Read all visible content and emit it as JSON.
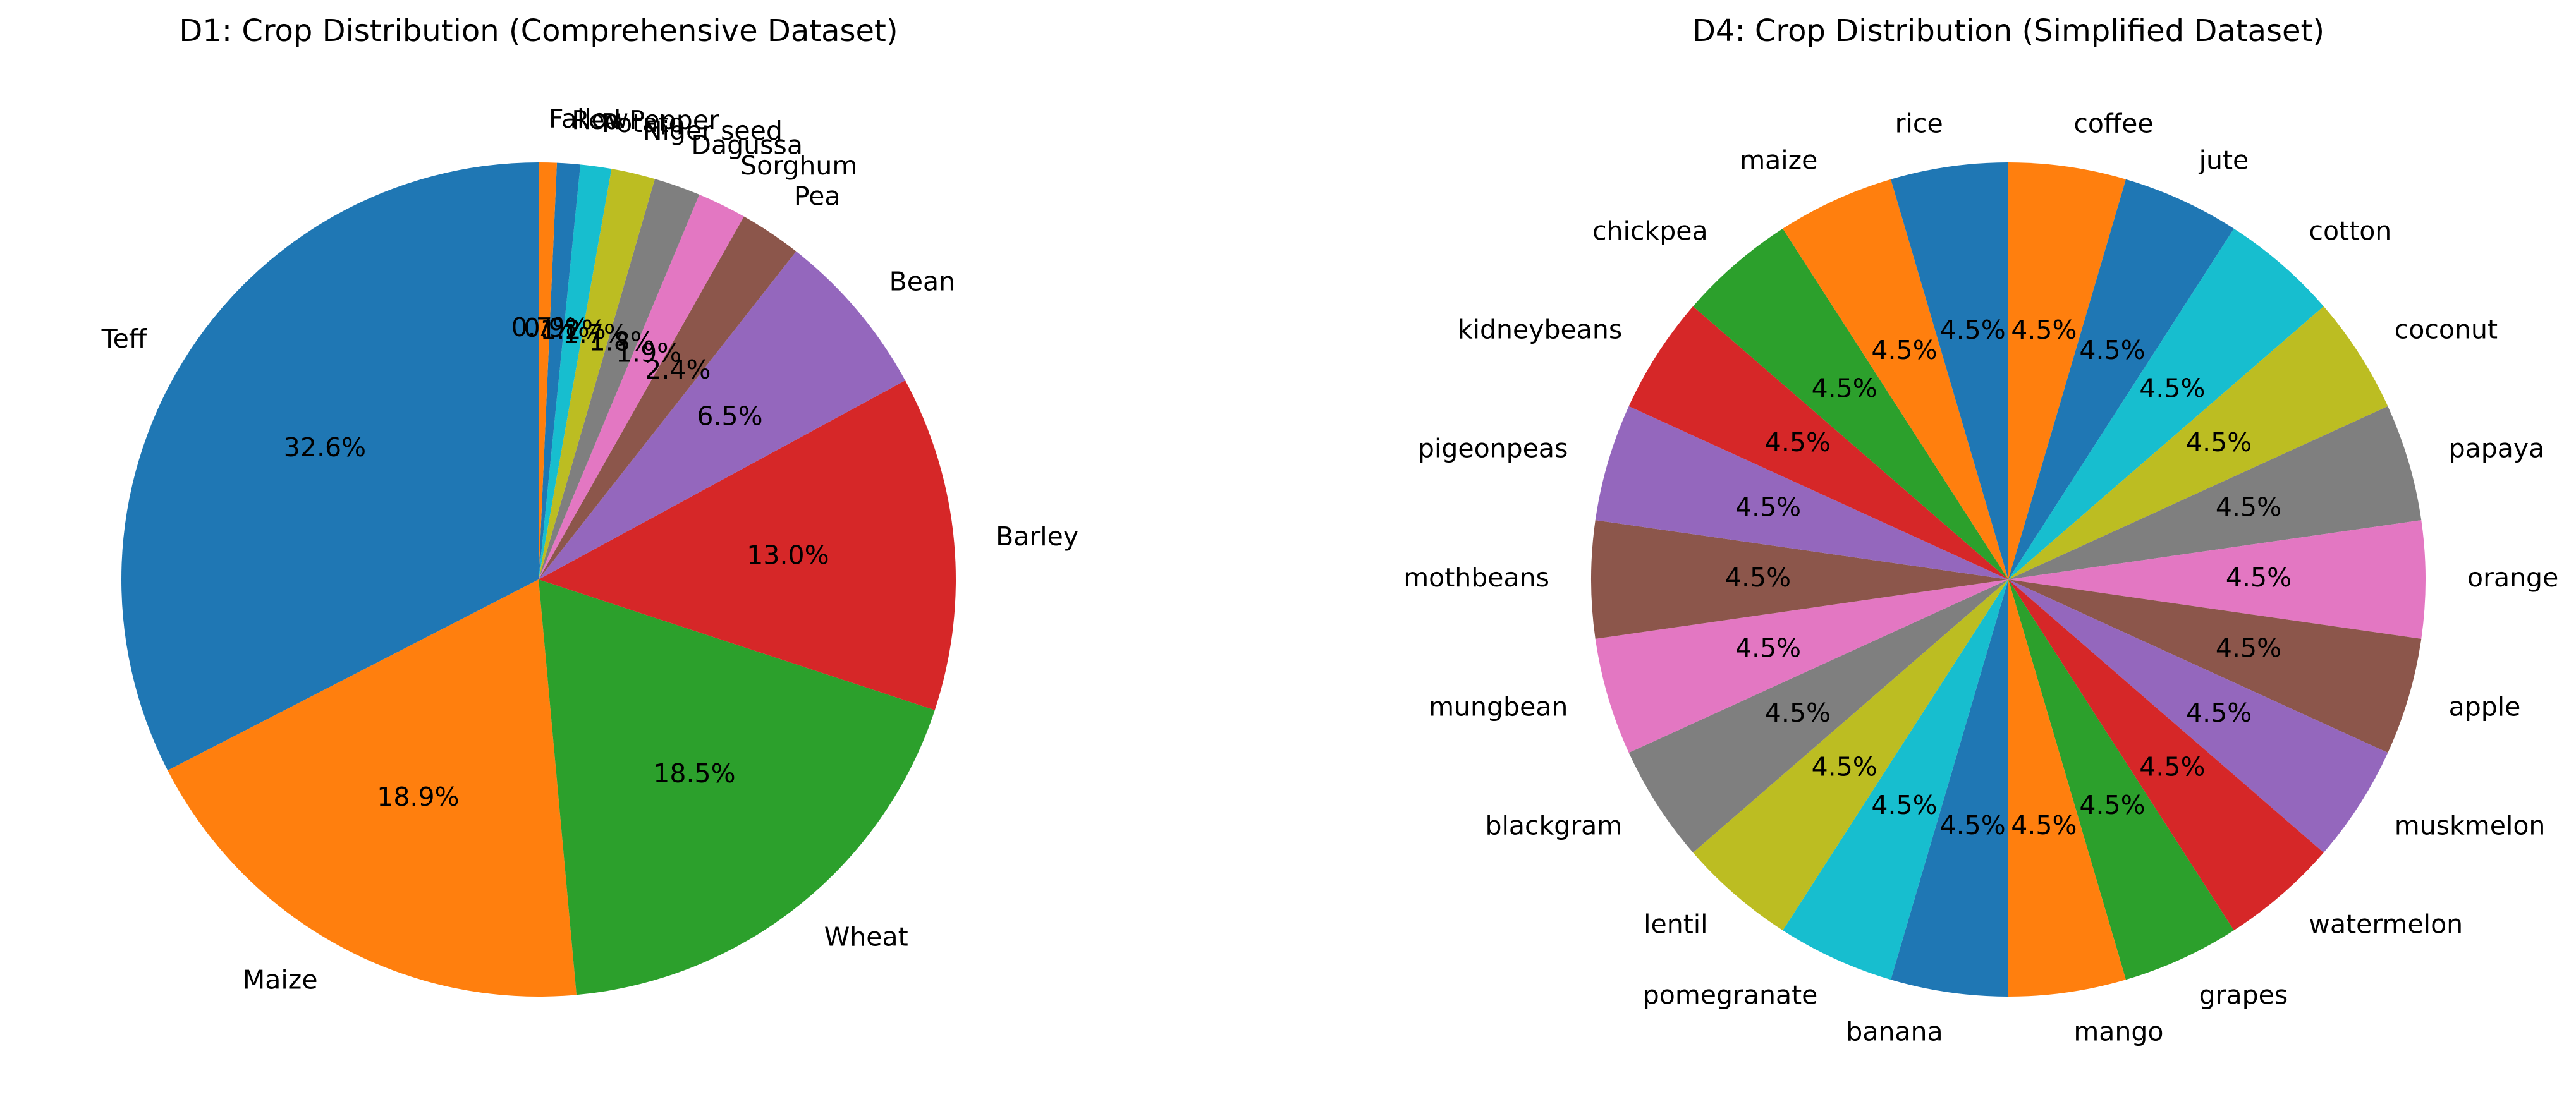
{
  "chart_data": [
    {
      "type": "pie",
      "title": "D1: Crop Distribution (Comprehensive Dataset)",
      "start_angle_deg": 90,
      "direction": "counterclockwise",
      "categories": [
        "Teff",
        "Maize",
        "Wheat",
        "Barley",
        "Bean",
        "Pea",
        "Sorghum",
        "Dagussa",
        "Niger seed",
        "Potato",
        "Red Pepper",
        "Fallow"
      ],
      "values": [
        32.6,
        18.9,
        18.5,
        13.0,
        6.5,
        2.4,
        1.9,
        1.8,
        1.7,
        1.2,
        0.9,
        0.7
      ],
      "value_labels": [
        "32.6%",
        "18.9%",
        "18.5%",
        "13.0%",
        "6.5%",
        "2.4%",
        "1.9%",
        "1.8%",
        "1.7%",
        "1.2%",
        "0.9%",
        "0.7%"
      ],
      "colors": [
        "#1f77b4",
        "#ff7f0e",
        "#2ca02c",
        "#d62728",
        "#9467bd",
        "#8c564b",
        "#e377c2",
        "#7f7f7f",
        "#bcbd22",
        "#17becf",
        "#1f77b4",
        "#ff7f0e"
      ],
      "legend": "none",
      "grid": false
    },
    {
      "type": "pie",
      "title": "D4: Crop Distribution (Simplified Dataset)",
      "start_angle_deg": 90,
      "direction": "clockwise",
      "categories": [
        "coffee",
        "jute",
        "cotton",
        "coconut",
        "papaya",
        "orange",
        "apple",
        "muskmelon",
        "watermelon",
        "grapes",
        "mango",
        "banana",
        "pomegranate",
        "lentil",
        "blackgram",
        "mungbean",
        "mothbeans",
        "pigeonpeas",
        "kidneybeans",
        "chickpea",
        "maize",
        "rice"
      ],
      "values": [
        4.5,
        4.5,
        4.5,
        4.5,
        4.5,
        4.5,
        4.5,
        4.5,
        4.5,
        4.5,
        4.5,
        4.5,
        4.5,
        4.5,
        4.5,
        4.5,
        4.5,
        4.5,
        4.5,
        4.5,
        4.5,
        4.5
      ],
      "value_labels": [
        "4.5%",
        "4.5%",
        "4.5%",
        "4.5%",
        "4.5%",
        "4.5%",
        "4.5%",
        "4.5%",
        "4.5%",
        "4.5%",
        "4.5%",
        "4.5%",
        "4.5%",
        "4.5%",
        "4.5%",
        "4.5%",
        "4.5%",
        "4.5%",
        "4.5%",
        "4.5%",
        "4.5%",
        "4.5%"
      ],
      "colors": [
        "#ff7f0e",
        "#1f77b4",
        "#17becf",
        "#bcbd22",
        "#7f7f7f",
        "#e377c2",
        "#8c564b",
        "#9467bd",
        "#d62728",
        "#2ca02c",
        "#ff7f0e",
        "#1f77b4",
        "#17becf",
        "#bcbd22",
        "#7f7f7f",
        "#e377c2",
        "#8c564b",
        "#9467bd",
        "#d62728",
        "#2ca02c",
        "#ff7f0e",
        "#1f77b4"
      ],
      "legend": "none",
      "grid": false
    }
  ]
}
